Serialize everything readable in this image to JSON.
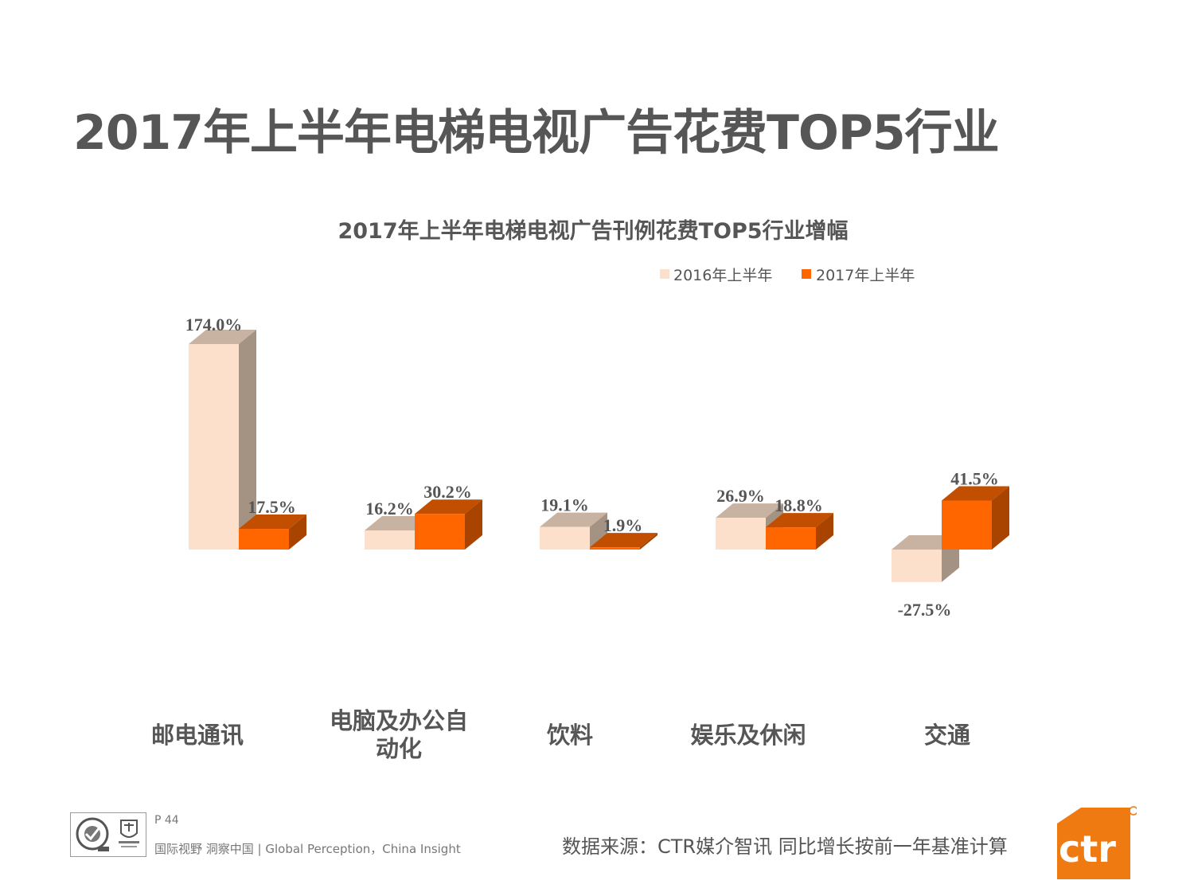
{
  "page": {
    "title": "2017年上半年电梯电视广告花费TOP5行业",
    "page_number": "P 44",
    "slogan": "国际视野  洞察中国 | Global Perception，China Insight",
    "source": "数据来源：CTR媒介智讯   同比增长按前一年基准计算",
    "logo_text": "ctr",
    "colors": {
      "series_2016": "#FDE0CB",
      "series_2016_side": "#A49283",
      "series_2017": "#FF6600",
      "series_2017_side": "#A84300"
    }
  },
  "chart_data": {
    "type": "bar",
    "title": "2017年上半年电梯电视广告刊例花费TOP5行业增幅",
    "legend_position": "top-right",
    "categories": [
      [
        "邮电通讯"
      ],
      [
        "电脑及办公自",
        "动化"
      ],
      [
        "饮料"
      ],
      [
        "娱乐及休闲"
      ],
      [
        "交通"
      ]
    ],
    "series": [
      {
        "name": "2016年上半年",
        "values": [
          174.0,
          16.2,
          19.1,
          26.9,
          -27.5
        ],
        "labels": [
          "174.0%",
          "16.2%",
          "19.1%",
          "26.9%",
          "-27.5%"
        ]
      },
      {
        "name": "2017年上半年",
        "values": [
          17.5,
          30.2,
          1.9,
          18.8,
          41.5
        ],
        "labels": [
          "17.5%",
          "30.2%",
          "1.9%",
          "18.8%",
          "41.5%"
        ]
      }
    ],
    "grid": false
  }
}
